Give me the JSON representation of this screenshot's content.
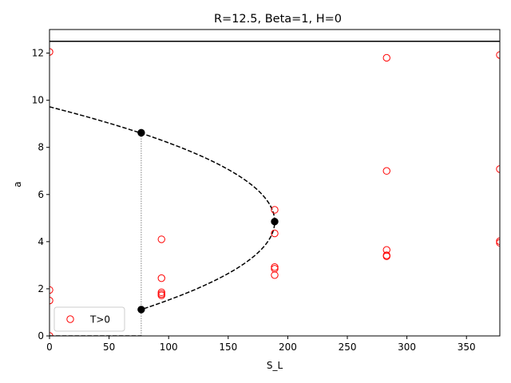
{
  "chart_data": {
    "type": "scatter",
    "title": "R=12.5, Beta=1, H=0",
    "xlabel": "S_L",
    "ylabel": "a",
    "xlim": [
      0,
      378
    ],
    "ylim": [
      0,
      13
    ],
    "xticks": [
      0,
      50,
      100,
      150,
      200,
      250,
      300,
      350
    ],
    "yticks": [
      0,
      2,
      4,
      6,
      8,
      10,
      12
    ],
    "grid": false,
    "legend": {
      "placement": "lower-left",
      "entries": [
        "T>0"
      ]
    },
    "colors": {
      "markers": "#ff0000",
      "curve": "#000000",
      "vline": "#808080"
    },
    "hline": {
      "y": 12.5
    },
    "curve": {
      "style": "dashed",
      "x_at_a_equals_0": 0,
      "a_top_at_x0": 9.72,
      "nose": {
        "x": 189,
        "y": 4.85
      },
      "bottom_branch_to": {
        "x": 77,
        "y": 1.12
      }
    },
    "baseline_dashed": {
      "x": [
        0,
        77
      ],
      "y": 0
    },
    "vline": {
      "x": 77,
      "y": [
        0,
        8.62
      ]
    },
    "key_points": [
      {
        "x": 77,
        "y": 8.62
      },
      {
        "x": 189,
        "y": 4.85
      },
      {
        "x": 77,
        "y": 1.12
      }
    ],
    "series": [
      {
        "name": "T>0",
        "points": [
          {
            "x": 0,
            "y": 12.05
          },
          {
            "x": 0,
            "y": 1.95
          },
          {
            "x": 0,
            "y": 1.5
          },
          {
            "x": 0,
            "y": 0.0
          },
          {
            "x": 94,
            "y": 4.1
          },
          {
            "x": 94,
            "y": 2.45
          },
          {
            "x": 94,
            "y": 1.85
          },
          {
            "x": 94,
            "y": 1.78
          },
          {
            "x": 94,
            "y": 1.72
          },
          {
            "x": 189,
            "y": 5.35
          },
          {
            "x": 189,
            "y": 4.35
          },
          {
            "x": 189,
            "y": 2.92
          },
          {
            "x": 189,
            "y": 2.85
          },
          {
            "x": 189,
            "y": 2.58
          },
          {
            "x": 283,
            "y": 11.8
          },
          {
            "x": 283,
            "y": 7.0
          },
          {
            "x": 283,
            "y": 3.65
          },
          {
            "x": 283,
            "y": 3.42
          },
          {
            "x": 283,
            "y": 3.38
          },
          {
            "x": 378,
            "y": 11.92
          },
          {
            "x": 378,
            "y": 7.08
          },
          {
            "x": 378,
            "y": 4.02
          },
          {
            "x": 378,
            "y": 3.95
          }
        ]
      }
    ]
  }
}
